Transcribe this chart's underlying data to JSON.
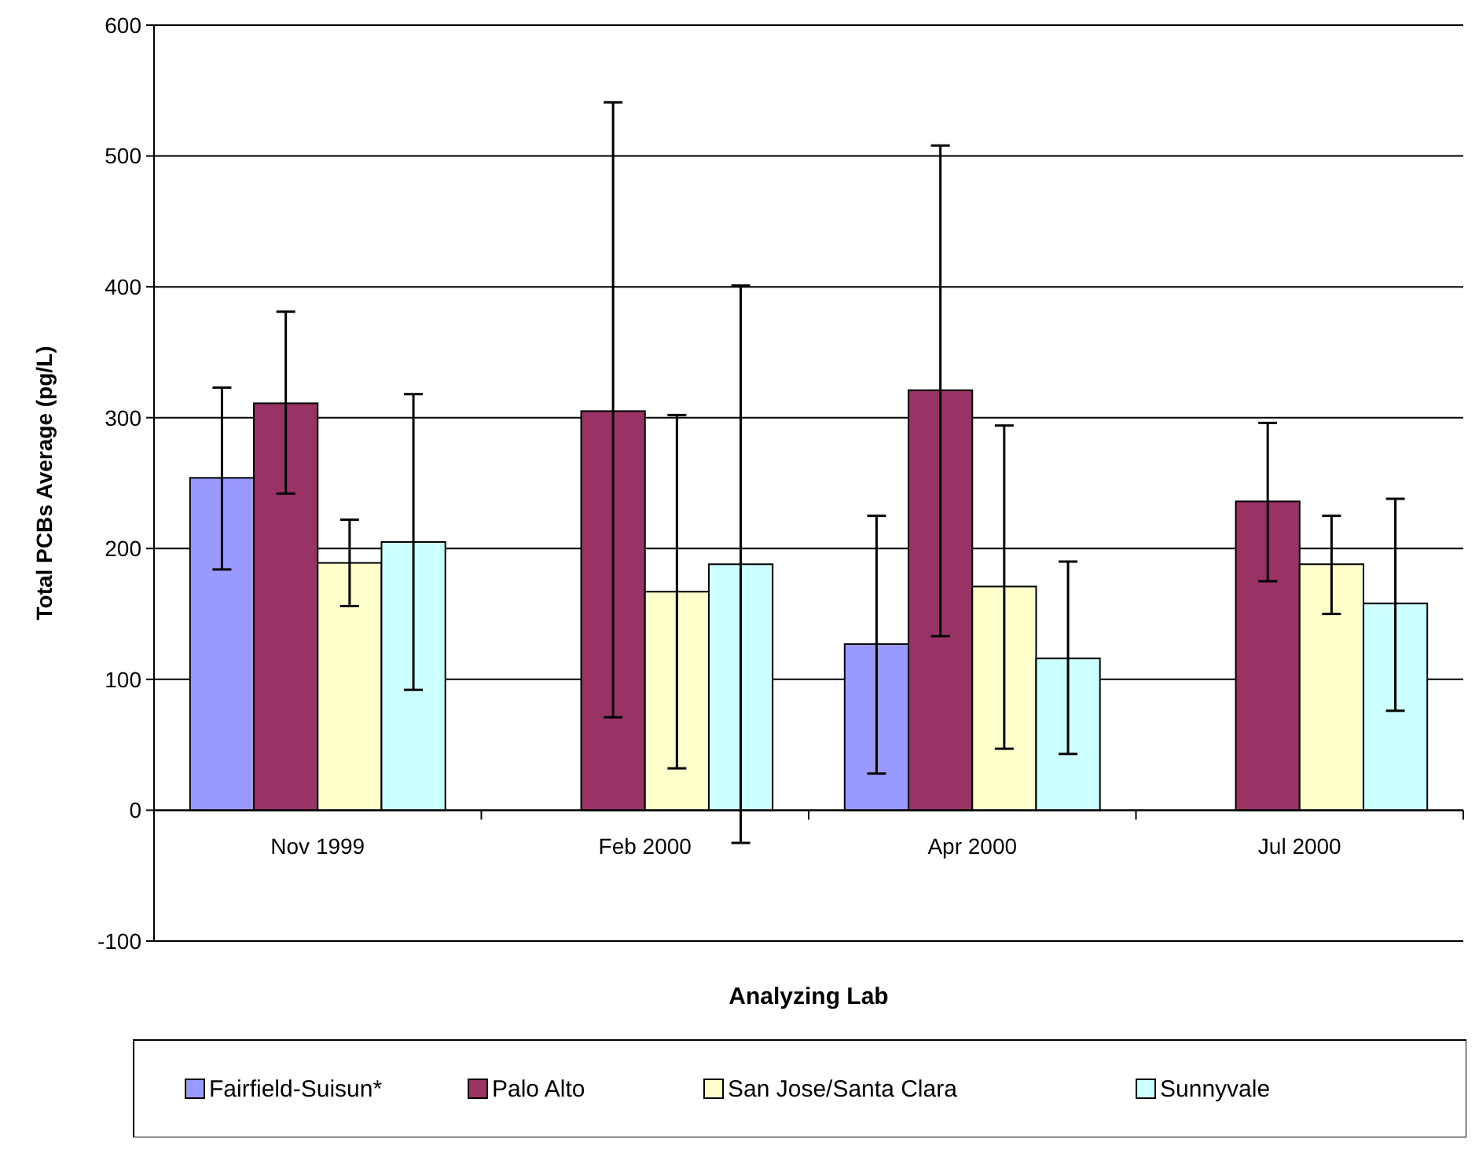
{
  "chart_data": {
    "type": "bar",
    "xlabel": "Analyzing Lab",
    "ylabel": "Total PCBs Average (pg/L)",
    "categories": [
      "Nov 1999",
      "Feb 2000",
      "Apr 2000",
      "Jul 2000"
    ],
    "series": [
      {
        "name": "Fairfield-Suisun*",
        "color": "#9999ff",
        "values": [
          254,
          null,
          127,
          null
        ],
        "errors": [
          [
            184,
            323
          ],
          null,
          [
            28,
            225
          ],
          null
        ]
      },
      {
        "name": "Palo Alto",
        "color": "#993366",
        "values": [
          311,
          305,
          321,
          236
        ],
        "errors": [
          [
            242,
            381
          ],
          [
            71,
            541
          ],
          [
            133,
            508
          ],
          [
            175,
            296
          ]
        ]
      },
      {
        "name": "San Jose/Santa Clara",
        "color": "#ffffcc",
        "values": [
          189,
          167,
          171,
          188
        ],
        "errors": [
          [
            156,
            222
          ],
          [
            32,
            302
          ],
          [
            47,
            294
          ],
          [
            150,
            225
          ]
        ]
      },
      {
        "name": "Sunnyvale",
        "color": "#ccffff",
        "values": [
          205,
          188,
          116,
          158
        ],
        "errors": [
          [
            92,
            318
          ],
          [
            -25,
            401
          ],
          [
            43,
            190
          ],
          [
            76,
            238
          ]
        ]
      }
    ],
    "ylim": [
      -100,
      600
    ],
    "yticks": [
      -100,
      0,
      100,
      200,
      300,
      400,
      500,
      600
    ],
    "grid": "y",
    "legend": "bottom"
  }
}
